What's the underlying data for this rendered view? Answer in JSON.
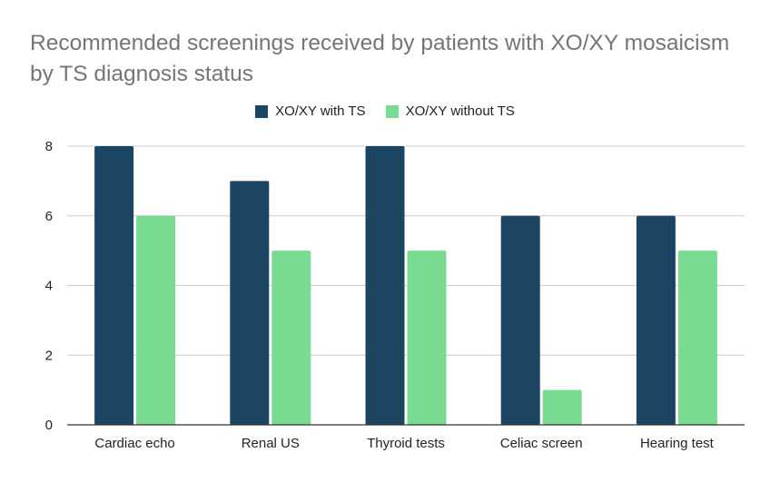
{
  "chart_data": {
    "type": "bar",
    "title": "Recommended screenings received by patients with XO/XY mosaicism by TS diagnosis status",
    "categories": [
      "Cardiac echo",
      "Renal US",
      "Thyroid tests",
      "Celiac screen",
      "Hearing test"
    ],
    "series": [
      {
        "name": "XO/XY with TS",
        "color": "#1b4560",
        "values": [
          8,
          7,
          8,
          6,
          6
        ]
      },
      {
        "name": "XO/XY without TS",
        "color": "#79da91",
        "values": [
          6,
          5,
          5,
          1,
          5
        ]
      }
    ],
    "ylim": [
      0,
      8
    ],
    "yticks": [
      0,
      2,
      4,
      6,
      8
    ],
    "xlabel": "",
    "ylabel": "",
    "legend_position": "top",
    "grid": true
  }
}
